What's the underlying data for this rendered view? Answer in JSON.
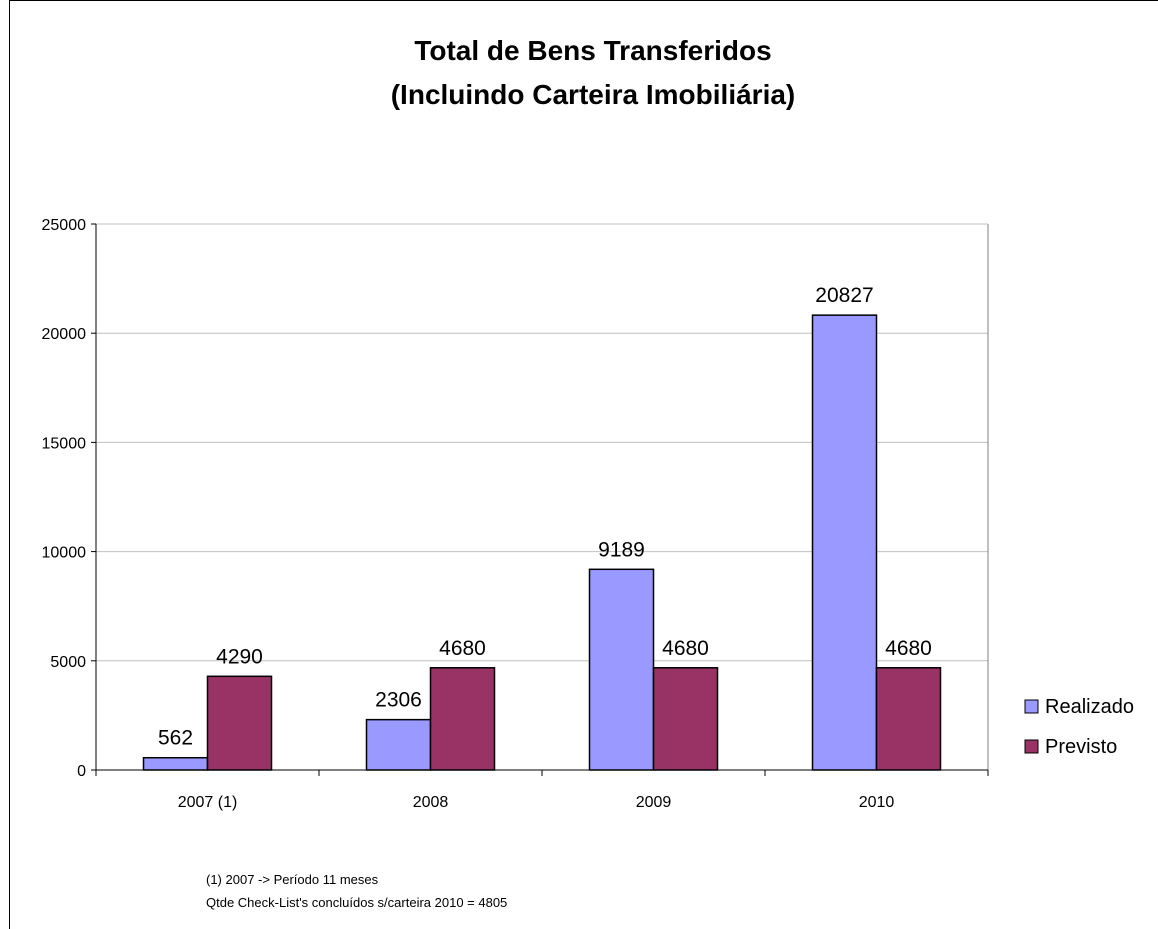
{
  "chart_data": {
    "type": "bar",
    "title": [
      "Total de Bens Transferidos",
      "(Incluindo Carteira Imobiliária)"
    ],
    "categories": [
      "2007 (1)",
      "2008",
      "2009",
      "2010"
    ],
    "series": [
      {
        "name": "Realizado",
        "values": [
          562,
          2306,
          9189,
          20827
        ],
        "color": "#9999ff"
      },
      {
        "name": "Previsto",
        "values": [
          4290,
          4680,
          4680,
          4680
        ],
        "color": "#993366"
      }
    ],
    "ylim": [
      0,
      25000
    ],
    "yticks": [
      0,
      5000,
      10000,
      15000,
      20000,
      25000
    ],
    "grid": true,
    "legend": "right",
    "notes": [
      "(1) 2007 -> Período 11 meses",
      "Qtde Check-List's concluídos s/carteira 2010 = 4805"
    ]
  }
}
